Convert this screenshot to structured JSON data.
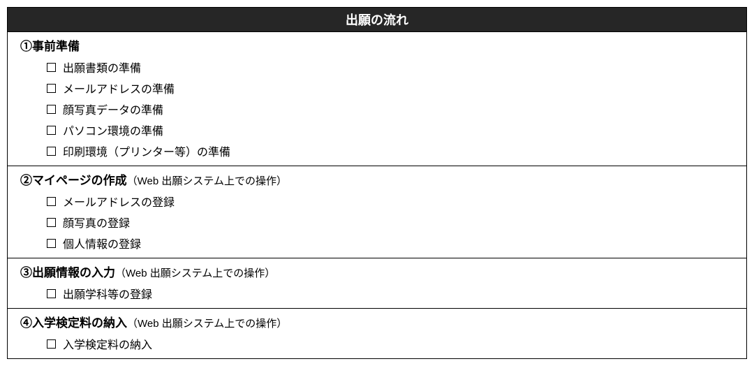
{
  "header": {
    "title": "出願の流れ"
  },
  "sections": [
    {
      "number": "①",
      "title": "事前準備",
      "subtitle": "",
      "items": [
        "出願書類の準備",
        "メールアドレスの準備",
        "顔写真データの準備",
        "パソコン環境の準備",
        "印刷環境（プリンター等）の準備"
      ]
    },
    {
      "number": "②",
      "title": "マイページの作成",
      "subtitle": "（Web 出願システム上での操作）",
      "items": [
        "メールアドレスの登録",
        "顔写真の登録",
        "個人情報の登録"
      ]
    },
    {
      "number": "③",
      "title": "出願情報の入力",
      "subtitle": "（Web 出願システム上での操作）",
      "items": [
        "出願学科等の登録"
      ]
    },
    {
      "number": "④",
      "title": "入学検定料の納入",
      "subtitle": "（Web 出願システム上での操作）",
      "items": [
        "入学検定料の納入"
      ]
    }
  ],
  "styling": {
    "header_bg": "#262626",
    "header_text_color": "#ffffff",
    "border_color": "#000000",
    "background_color": "#ffffff",
    "text_color": "#000000",
    "header_fontsize": 18,
    "title_fontsize": 17,
    "subtitle_fontsize": 15,
    "item_fontsize": 16,
    "checkbox_size": 13,
    "container_width": 1060
  }
}
